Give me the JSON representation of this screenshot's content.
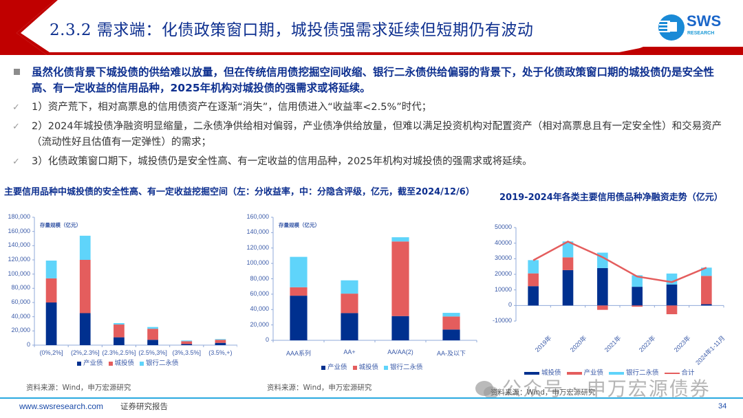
{
  "header": {
    "title": "2.3.2 需求端：化债政策窗口期，城投债强需求延续但短期仍有波动",
    "logo_text": "SWS",
    "logo_sub": "RESEARCH"
  },
  "bullets": {
    "main": "虽然化债背景下城投债的供给难以放量，但在传统信用债挖掘空间收缩、银行二永债供给偏弱的背景下，处于化债政策窗口期的城投债仍是安全性高、有一定收益的信用品种，2025年机构对城投债的强需求或将延续。",
    "items": [
      "1）资产荒下，相对高票息的信用债资产在逐渐“消失”，信用债进入“收益率<2.5%”时代；",
      "2）2024年城投债净融资明显缩量，二永债净供给相对偏弱，产业债净供给放量，但难以满足投资机构对配置资产（相对高票息且有一定安全性）和交易资产（流动性好且估值有一定弹性）的需求；",
      "3）化债政策窗口期下，城投债仍是安全性高、有一定收益的信用品种，2025年机构对城投债的强需求或将延续。"
    ]
  },
  "left_section_title": "主要信用品种中城投债的安全性高、有一定收益挖掘空间（左：分收益率，中：分隐含评级，亿元，截至2024/12/6）",
  "right_section_title": "2019-2024年各类主要信用债品种净融资走势（亿元）",
  "colors": {
    "navy": "#00308f",
    "red": "#e45d5d",
    "cyan": "#5fd4fa",
    "line": "#e45d5d",
    "title_blue": "#0d2f8f",
    "brand_red": "#c00000"
  },
  "chart_data": [
    {
      "type": "bar",
      "stacked": true,
      "title": "",
      "inner_label": "存量规模（亿元）",
      "xlabel": "",
      "ylabel": "存量规模（亿元）",
      "ylim": [
        0,
        180000
      ],
      "yticks": [
        "180,000",
        "160,000",
        "140,000",
        "120,000",
        "100,000",
        "80,000",
        "60,000",
        "40,000",
        "20,000",
        "0"
      ],
      "categories": [
        "(0%,2%]",
        "(2%,2.3%]",
        "(2.3%,2.5%]",
        "(2.5%,3%]",
        "(3%,3.5%]",
        "(3.5%,+)"
      ],
      "series": [
        {
          "name": "产业债",
          "values": [
            60000,
            45000,
            11000,
            7500,
            1500,
            3200
          ]
        },
        {
          "name": "城投债",
          "values": [
            34000,
            75000,
            18000,
            15500,
            4000,
            4300
          ]
        },
        {
          "name": "银行二永债",
          "values": [
            25000,
            34000,
            2000,
            2500,
            1000,
            1000
          ]
        }
      ],
      "legend": [
        "产业债",
        "城投债",
        "银行二永债"
      ],
      "legend_position": "bottom",
      "grid": false,
      "source": "资料来源：Wind，申万宏源研究"
    },
    {
      "type": "bar",
      "stacked": true,
      "title": "",
      "inner_label": "存量规模（亿元）",
      "xlabel": "",
      "ylabel": "存量规模（亿元）",
      "ylim": [
        0,
        160000
      ],
      "yticks": [
        "160,000",
        "140,000",
        "120,000",
        "100,000",
        "80,000",
        "60,000",
        "40,000",
        "20,000",
        "0"
      ],
      "categories": [
        "AAA系列",
        "AA+",
        "AA/AA(2)",
        "AA-及以下"
      ],
      "series": [
        {
          "name": "产业债",
          "values": [
            58000,
            35400,
            31500,
            14000
          ]
        },
        {
          "name": "城投债",
          "values": [
            11000,
            25300,
            97000,
            17000
          ]
        },
        {
          "name": "银行二永债",
          "values": [
            39500,
            17300,
            5500,
            4700
          ]
        }
      ],
      "legend": [
        "产业债",
        "城投债",
        "银行二永债"
      ],
      "legend_position": "bottom",
      "grid": false,
      "source": "资料来源：Wind，申万宏源研究"
    },
    {
      "type": "bar",
      "stacked": true,
      "title": "2019-2024年各类主要信用债品种净融资走势（亿元）",
      "xlabel": "",
      "ylabel": "亿元",
      "ylim": [
        -10000,
        50000
      ],
      "yticks": [
        "50000",
        "40000",
        "30000",
        "20000",
        "10000",
        "0",
        "-10000"
      ],
      "categories": [
        "2019年",
        "2020年",
        "2021年",
        "2022年",
        "2023年",
        "2024年1-11月"
      ],
      "series": [
        {
          "name": "城投债",
          "values": [
            12400,
            22700,
            24000,
            12000,
            13500,
            800
          ]
        },
        {
          "name": "产业债",
          "values": [
            8200,
            8200,
            -2800,
            -800,
            -5600,
            18200
          ]
        },
        {
          "name": "银行二永债",
          "values": [
            8500,
            10200,
            9900,
            7400,
            7000,
            5300
          ]
        },
        {
          "name": "合计",
          "type": "line",
          "values": [
            29000,
            41000,
            31000,
            18600,
            15000,
            24300
          ]
        }
      ],
      "legend": [
        "城投债",
        "产业债",
        "银行二永债",
        "合计"
      ],
      "legend_position": "bottom",
      "grid": false,
      "source": "资料来源：Wind，申万宏源研究"
    }
  ],
  "footer": {
    "url": "www.swsresearch.com",
    "doc_type": "证券研究报告",
    "page": "34",
    "watermark": "公众号 · 申万宏源债券"
  }
}
